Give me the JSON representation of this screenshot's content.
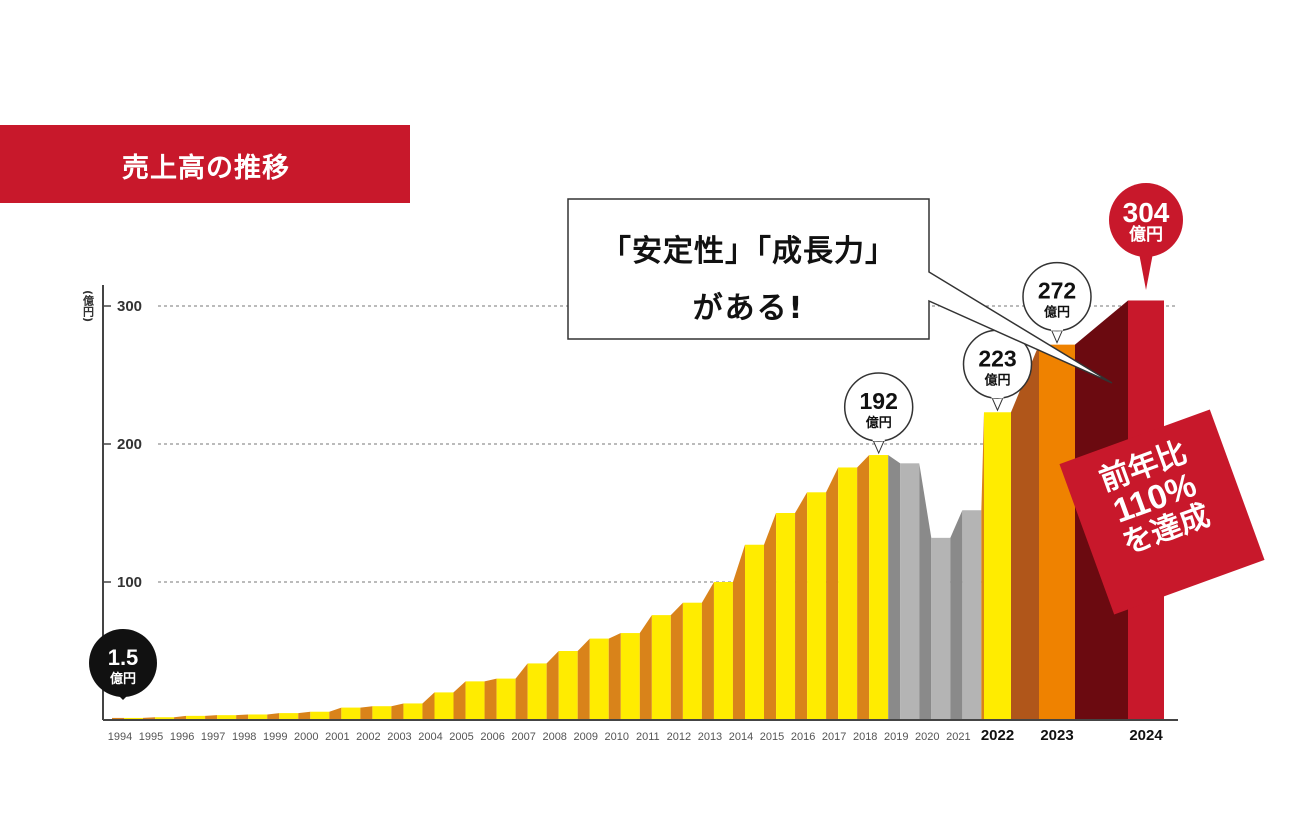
{
  "header": {
    "title": "売上高の推移"
  },
  "speech_bubble": {
    "line1": "「安定性」「成長力」",
    "line2": "がある!"
  },
  "badge": {
    "line1": "前年比",
    "line2": "110%",
    "line3": "を達成"
  },
  "colors": {
    "title_band": "#c8182b",
    "yellow": "#ffec00",
    "orange_side": "#d9831a",
    "gray_front": "#b4b4b4",
    "gray_side": "#8a8a8a",
    "bar_2023": "#ef8200",
    "side_2023": "#b0561a",
    "side_2024": "#6b0a10",
    "bar_2024": "#c8182b",
    "callout_dark": "#111111"
  },
  "chart_data": {
    "type": "bar",
    "title": "売上高の推移",
    "xlabel": "",
    "ylabel": "(億円)",
    "ylim": [
      0,
      300
    ],
    "yticks": [
      100,
      200,
      300
    ],
    "grid": "dashed horizontal at ticks",
    "categories": [
      "1994",
      "1995",
      "1996",
      "1997",
      "1998",
      "1999",
      "2000",
      "2001",
      "2002",
      "2003",
      "2004",
      "2005",
      "2006",
      "2007",
      "2008",
      "2009",
      "2010",
      "2011",
      "2012",
      "2013",
      "2014",
      "2015",
      "2016",
      "2017",
      "2018",
      "2019",
      "2020",
      "2021",
      "2022",
      "2023",
      "2024"
    ],
    "values": [
      1.5,
      2,
      3,
      3.5,
      4,
      5,
      6,
      9,
      10,
      12,
      20,
      28,
      30,
      41,
      50,
      59,
      63,
      76,
      85,
      100,
      127,
      150,
      165,
      183,
      192,
      186,
      132,
      152,
      223,
      272,
      304
    ],
    "units": "億円",
    "emphasized_years": [
      "2022",
      "2023",
      "2024"
    ],
    "gray_years": [
      "2019",
      "2020",
      "2021"
    ],
    "annotations": [
      {
        "year": "1994",
        "value": "1.5",
        "unit": "億円",
        "style": "dark"
      },
      {
        "year": "2018",
        "value": "192",
        "unit": "億円",
        "style": "outline"
      },
      {
        "year": "2022",
        "value": "223",
        "unit": "億円",
        "style": "outline"
      },
      {
        "year": "2023",
        "value": "272",
        "unit": "億円",
        "style": "outline"
      },
      {
        "year": "2024",
        "value": "304",
        "unit": "億円",
        "style": "red"
      }
    ]
  }
}
